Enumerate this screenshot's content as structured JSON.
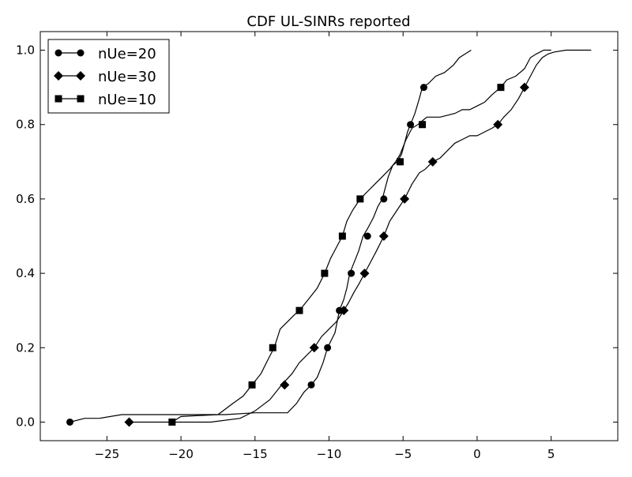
{
  "chart_data": {
    "type": "line",
    "title": "CDF UL-SINRs reported",
    "xlabel": "",
    "ylabel": "",
    "xlim": [
      -29.5,
      9.5
    ],
    "ylim": [
      -0.05,
      1.05
    ],
    "grid": false,
    "legend_position": "top-left",
    "xticks": [
      -25,
      -20,
      -15,
      -10,
      -5,
      0,
      5
    ],
    "xtick_labels": [
      "−25",
      "−20",
      "−15",
      "−10",
      "−5",
      "0",
      "5"
    ],
    "yticks": [
      0.0,
      0.2,
      0.4,
      0.6,
      0.8,
      1.0
    ],
    "ytick_labels": [
      "0.0",
      "0.2",
      "0.4",
      "0.6",
      "0.8",
      "1.0"
    ],
    "series": [
      {
        "name": "nUe=20",
        "marker": "circle",
        "color": "#000000",
        "x": [
          -27.5,
          -26.5,
          -25.5,
          -24.0,
          -21.5,
          -19.0,
          -17.0,
          -15.0,
          -13.8,
          -12.8,
          -12.2,
          -11.7,
          -11.2,
          -10.8,
          -10.4,
          -10.1,
          -9.6,
          -9.3,
          -9.0,
          -8.8,
          -8.6,
          -8.4,
          -8.0,
          -7.7,
          -7.4,
          -7.0,
          -6.7,
          -6.4,
          -6.2,
          -6.0,
          -5.7,
          -5.4,
          -5.1,
          -4.9,
          -4.7,
          -4.5,
          -4.2,
          -3.9,
          -3.7,
          -3.3,
          -2.8,
          -2.2,
          -1.6,
          -1.2,
          -0.8,
          -0.4
        ],
        "y": [
          0.0,
          0.01,
          0.01,
          0.02,
          0.02,
          0.02,
          0.02,
          0.025,
          0.025,
          0.025,
          0.05,
          0.08,
          0.1,
          0.12,
          0.16,
          0.2,
          0.24,
          0.3,
          0.33,
          0.36,
          0.4,
          0.42,
          0.46,
          0.5,
          0.52,
          0.55,
          0.58,
          0.6,
          0.63,
          0.66,
          0.69,
          0.7,
          0.72,
          0.75,
          0.78,
          0.8,
          0.83,
          0.87,
          0.9,
          0.91,
          0.93,
          0.94,
          0.96,
          0.98,
          0.99,
          1.0
        ],
        "marker_x": [
          -27.5,
          -11.2,
          -10.1,
          -9.3,
          -8.5,
          -7.4,
          -6.3,
          -5.2,
          -4.5,
          -3.6
        ],
        "marker_y": [
          0.0,
          0.1,
          0.2,
          0.3,
          0.4,
          0.5,
          0.6,
          0.7,
          0.8,
          0.9
        ]
      },
      {
        "name": "nUe=30",
        "marker": "diamond",
        "color": "#000000",
        "x": [
          -23.5,
          -21.0,
          -18.0,
          -16.0,
          -15.0,
          -14.0,
          -13.2,
          -12.5,
          -12.0,
          -11.5,
          -11.0,
          -10.5,
          -10.0,
          -9.5,
          -9.0,
          -8.7,
          -8.3,
          -8.0,
          -7.6,
          -7.2,
          -6.8,
          -6.3,
          -5.9,
          -5.4,
          -4.9,
          -4.4,
          -3.9,
          -3.5,
          -3.0,
          -2.5,
          -2.0,
          -1.5,
          -1.0,
          -0.5,
          0.0,
          0.5,
          1.0,
          1.4,
          1.8,
          2.3,
          2.8,
          3.2,
          3.6,
          4.0,
          4.4,
          4.8,
          5.2,
          6.0,
          7.0,
          7.7
        ],
        "y": [
          0.0,
          0.0,
          0.0,
          0.01,
          0.03,
          0.06,
          0.1,
          0.13,
          0.16,
          0.18,
          0.2,
          0.23,
          0.25,
          0.27,
          0.3,
          0.32,
          0.35,
          0.37,
          0.4,
          0.43,
          0.46,
          0.5,
          0.54,
          0.57,
          0.6,
          0.64,
          0.67,
          0.68,
          0.7,
          0.71,
          0.73,
          0.75,
          0.76,
          0.77,
          0.77,
          0.78,
          0.79,
          0.8,
          0.82,
          0.84,
          0.87,
          0.9,
          0.93,
          0.96,
          0.98,
          0.99,
          0.995,
          1.0,
          1.0,
          1.0
        ],
        "marker_x": [
          -23.5,
          -13.0,
          -11.0,
          -9.0,
          -7.6,
          -6.3,
          -4.9,
          -3.0,
          1.4,
          3.2
        ],
        "marker_y": [
          0.0,
          0.1,
          0.2,
          0.3,
          0.4,
          0.5,
          0.6,
          0.7,
          0.8,
          0.9
        ]
      },
      {
        "name": "nUe=10",
        "marker": "square",
        "color": "#000000",
        "x": [
          -20.6,
          -20.0,
          -17.5,
          -16.5,
          -15.8,
          -15.2,
          -14.6,
          -14.1,
          -13.7,
          -13.3,
          -12.8,
          -12.3,
          -12.0,
          -11.4,
          -10.8,
          -10.3,
          -9.9,
          -9.5,
          -9.1,
          -8.8,
          -8.4,
          -7.9,
          -7.4,
          -6.9,
          -6.4,
          -5.9,
          -5.5,
          -5.2,
          -4.8,
          -4.4,
          -4.0,
          -3.7,
          -3.4,
          -3.0,
          -2.5,
          -1.5,
          -1.0,
          -0.5,
          0.0,
          0.5,
          1.0,
          1.6,
          2.0,
          2.6,
          3.2,
          3.6,
          4.0,
          4.5,
          5.0
        ],
        "y": [
          0.0,
          0.015,
          0.02,
          0.05,
          0.07,
          0.1,
          0.13,
          0.17,
          0.2,
          0.25,
          0.27,
          0.29,
          0.3,
          0.33,
          0.36,
          0.4,
          0.44,
          0.47,
          0.5,
          0.54,
          0.57,
          0.6,
          0.62,
          0.64,
          0.66,
          0.68,
          0.7,
          0.72,
          0.76,
          0.79,
          0.8,
          0.81,
          0.82,
          0.82,
          0.82,
          0.83,
          0.84,
          0.84,
          0.85,
          0.86,
          0.88,
          0.9,
          0.92,
          0.93,
          0.95,
          0.98,
          0.99,
          1.0,
          1.0
        ],
        "marker_x": [
          -20.6,
          -15.2,
          -13.8,
          -12.0,
          -10.3,
          -9.1,
          -7.9,
          -5.2,
          -3.7,
          1.6
        ],
        "marker_y": [
          0.0,
          0.1,
          0.2,
          0.3,
          0.4,
          0.5,
          0.6,
          0.7,
          0.8,
          0.9
        ]
      }
    ]
  }
}
